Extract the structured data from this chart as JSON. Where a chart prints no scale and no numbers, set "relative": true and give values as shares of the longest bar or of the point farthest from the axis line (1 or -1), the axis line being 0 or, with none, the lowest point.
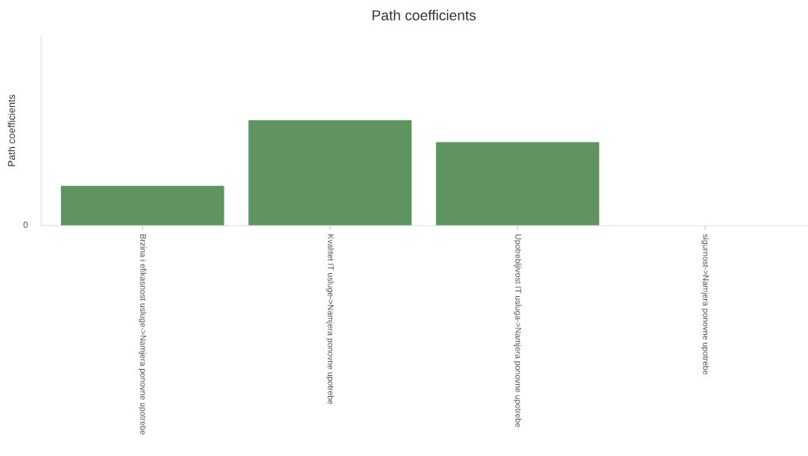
{
  "chart_data": {
    "type": "bar",
    "title": "Path coefficients",
    "ylabel": "Path coefficients",
    "categories": [
      "Brzina i efikasnost usluge->Namjera ponovne upotrebe",
      "Kvalitet IT usluge->Namjera ponovne upotrebe",
      "Upotrebljivost IT usluga->Namjera ponovne upotrebe",
      "sigurnost->Namjera ponovne upotrebe"
    ],
    "values": [
      0.377,
      1,
      0.792,
      0
    ],
    "color": "#5f9461",
    "relative": true,
    "grid": false,
    "legend": false,
    "annotations": [
      "0"
    ]
  }
}
